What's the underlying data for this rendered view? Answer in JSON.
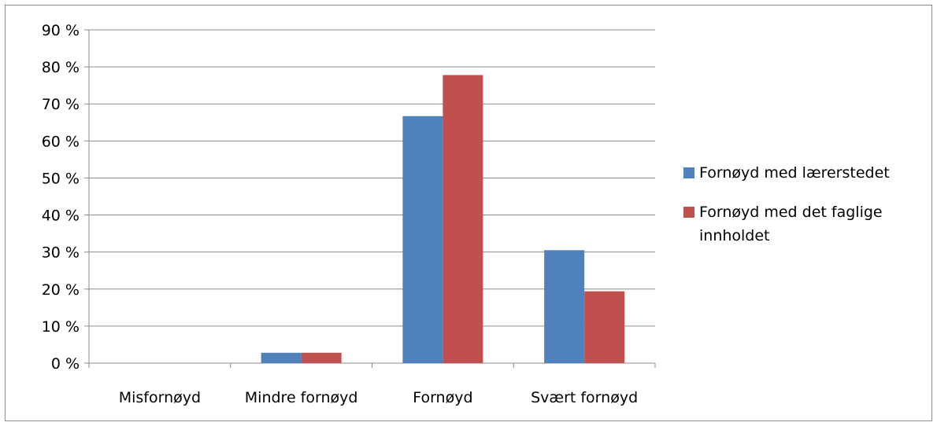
{
  "chart_data": {
    "type": "bar",
    "title": "",
    "xlabel": "",
    "ylabel": "",
    "categories": [
      "Misfornøyd",
      "Mindre fornøyd",
      "Fornøyd",
      "Svært fornøyd"
    ],
    "series": [
      {
        "name": "Fornøyd med lærerstedet",
        "values": [
          0,
          2.8,
          66.7,
          30.5
        ],
        "color": "#4f81bd"
      },
      {
        "name": "Fornøyd med det faglige innholdet",
        "values": [
          0,
          2.8,
          77.8,
          19.4
        ],
        "color": "#c0504d"
      }
    ],
    "ylim": [
      0,
      90
    ],
    "yticks": [
      0,
      10,
      20,
      30,
      40,
      50,
      60,
      70,
      80,
      90
    ],
    "ytick_labels": [
      "0 %",
      "10 %",
      "20 %",
      "30 %",
      "40 %",
      "50 %",
      "60 %",
      "70 %",
      "80 %",
      "90 %"
    ],
    "grid": true,
    "legend_position": "right"
  }
}
